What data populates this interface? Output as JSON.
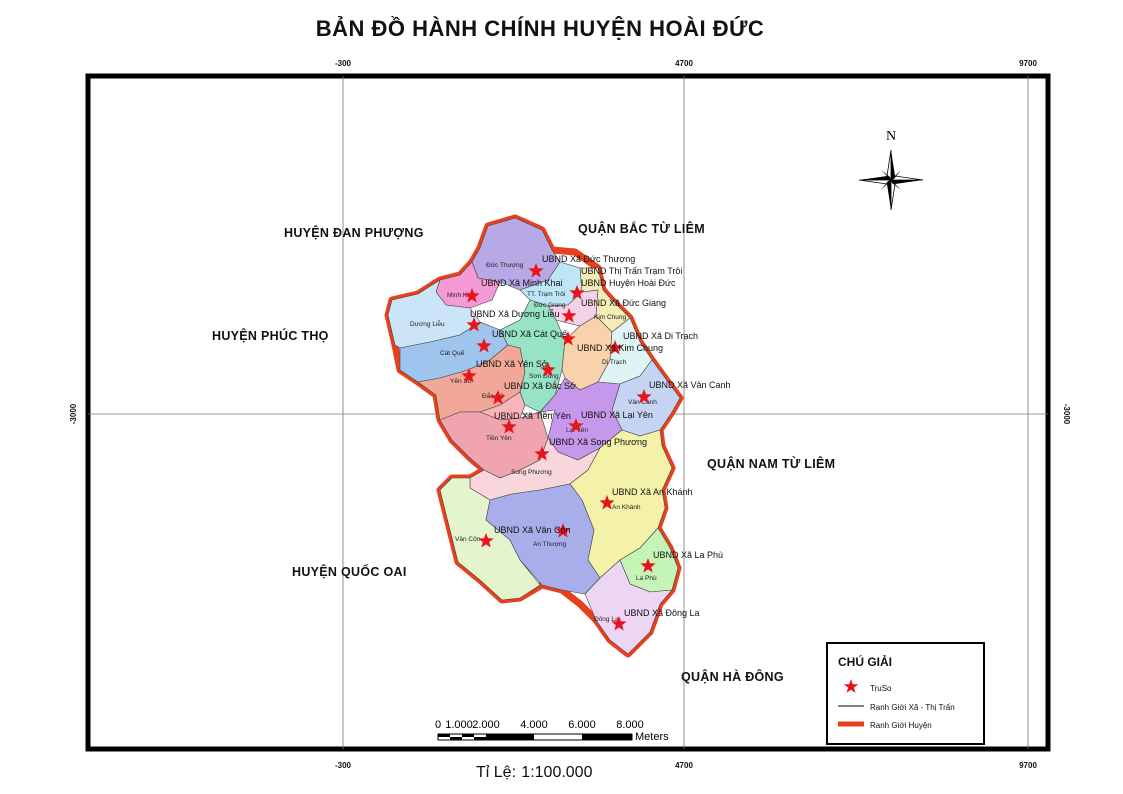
{
  "title": "BẢN ĐỒ HÀNH CHÍNH HUYỆN HOÀI ĐỨC",
  "grid": {
    "x_ticks": [
      "-300",
      "4700",
      "9700"
    ],
    "y_ticks": [
      "-3000",
      "-3000"
    ]
  },
  "neighbors": {
    "dan_phuong": "HUYỆN ĐAN PHƯỢNG",
    "phuc_tho": "HUYỆN PHÚC THỌ",
    "quoc_oai": "HUYỆN QUỐC OAI",
    "bac_tu_liem": "QUẬN BẮC TỪ LIÊM",
    "nam_tu_liem": "QUẬN NAM TỪ LIÊM",
    "ha_dong": "QUẬN HÀ ĐÔNG"
  },
  "communes": {
    "duc_thuong": "Đức Thượng",
    "minh_khai": "Minh Khai",
    "tt_tram_troi": "TT. Trạm Trôi",
    "duc_giang": "Đức Giang",
    "kim_chung": "Kim Chung",
    "duong_lieu": "Dương Liễu",
    "cat_que": "Cát Quế",
    "di_trach": "Di Trạch",
    "son_dong": "Sơn Đồng",
    "yen_so": "Yên Sở",
    "dac_so": "Đắc Sở",
    "van_canh": "Vân Canh",
    "lai_yen": "Lại Yên",
    "tien_yen": "Tiền Yên",
    "song_phuong": "Song Phương",
    "an_khanh": "An Khánh",
    "van_con": "Vân Côn",
    "an_thuong": "An Thượng",
    "la_phu": "La Phù",
    "dong_la": "Đông La"
  },
  "ubnd": {
    "duc_thuong": "UBND Xã Đức Thượng",
    "tt_tram_troi": "UBND Thị Trấn Trạm Trôi",
    "huyen": "UBND Huyện Hoài Đức",
    "minh_khai": "UBND Xã Minh Khai",
    "duc_giang": "UBND Xã Đức Giang",
    "duong_lieu": "UBND Xã Dương Liễu",
    "cat_que": "UBND Xã Cát Quế",
    "di_trach": "UBND Xã Di Trạch",
    "kim_chung": "UBND Xã Kim Chung",
    "yen_so": "UBND Xã Yên Sở",
    "dac_so": "UBND Xã Đắc Sở",
    "van_canh": "UBND Xã Vân Canh",
    "tien_yen": "UBND Xã Tiền Yên",
    "lai_yen": "UBND Xã Lại Yên",
    "song_phuong": "UBND Xã Song Phương",
    "an_khanh": "UBND Xã An Khánh",
    "van_con": "UBND Xã Vân Côn",
    "la_phu": "UBND Xã La Phù",
    "dong_la": "UBND Xã Đông La"
  },
  "north_label": "N",
  "legend": {
    "title": "CHÚ GIẢI",
    "items": [
      "TruSo",
      "Ranh Giới Xã - Thị Trấn",
      "Ranh Giới Huyện"
    ],
    "colors": {
      "truso": "#e8141c",
      "ranh_xa": "#000000",
      "ranh_huyen": "#e8401c"
    }
  },
  "scalebar": {
    "labels": [
      "0",
      "1.000",
      "2.000",
      "4.000",
      "6.000",
      "8.000"
    ],
    "unit": "Meters"
  },
  "scale_text": {
    "prefix": "Tỉ Lệ:",
    "value": "1:100.000"
  }
}
